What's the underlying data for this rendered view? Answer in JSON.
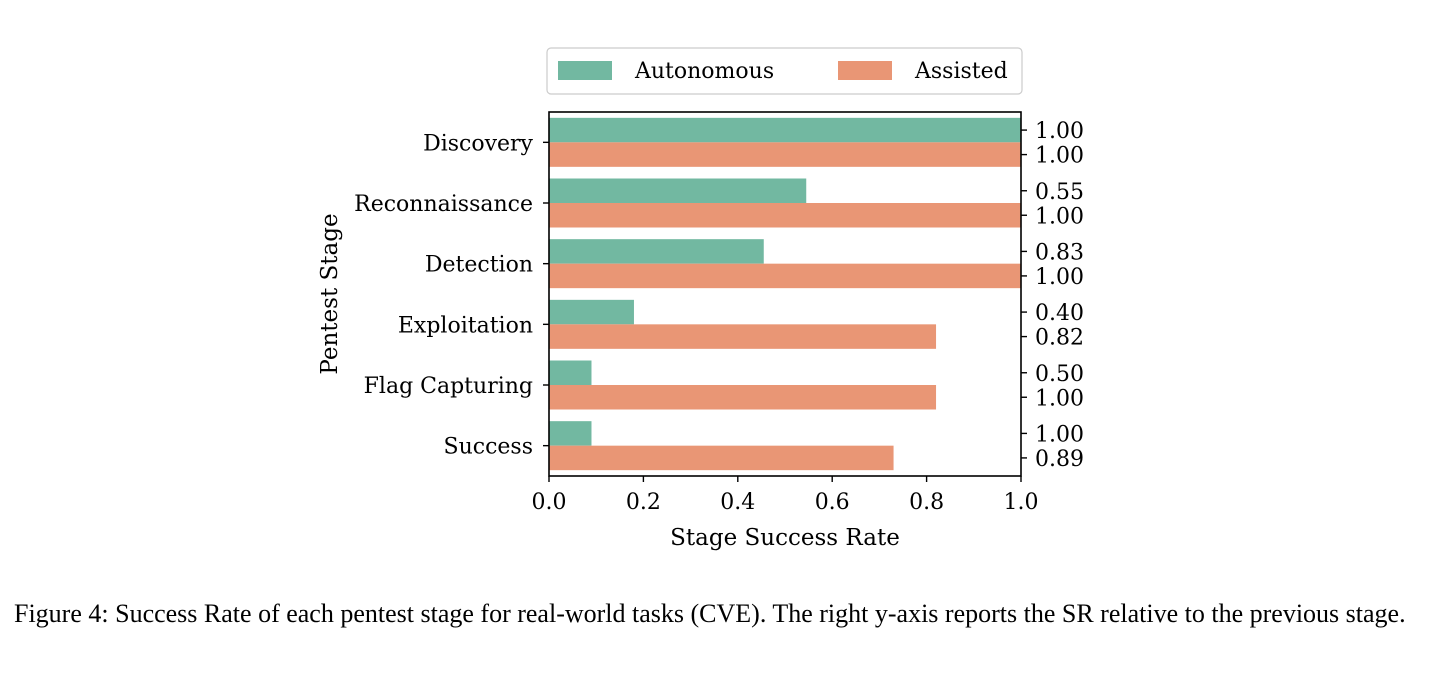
{
  "chart_data": {
    "type": "bar",
    "orientation": "horizontal",
    "categories": [
      "Discovery",
      "Reconnaissance",
      "Detection",
      "Exploitation",
      "Flag Capturing",
      "Success"
    ],
    "series": [
      {
        "name": "Autonomous",
        "color": "#72b8a1",
        "values": [
          1.0,
          0.545,
          0.455,
          0.18,
          0.09,
          0.09
        ]
      },
      {
        "name": "Assisted",
        "color": "#e99675",
        "values": [
          1.0,
          1.0,
          1.0,
          0.82,
          0.82,
          0.73
        ]
      }
    ],
    "right_axis_labels": [
      [
        "1.00",
        "1.00"
      ],
      [
        "0.55",
        "1.00"
      ],
      [
        "0.83",
        "1.00"
      ],
      [
        "0.40",
        "0.82"
      ],
      [
        "0.50",
        "1.00"
      ],
      [
        "1.00",
        "0.89"
      ]
    ],
    "xticks": [
      "0.0",
      "0.2",
      "0.4",
      "0.6",
      "0.8",
      "1.0"
    ],
    "xlim": [
      0,
      1
    ],
    "xlabel": "Stage Success Rate",
    "ylabel": "Pentest Stage",
    "legend": {
      "position": "top-center",
      "columns": 2
    },
    "grid": false
  },
  "caption": "Figure 4: Success Rate of each pentest stage for real-world tasks (CVE). The right y-axis reports the SR relative to the previous stage."
}
